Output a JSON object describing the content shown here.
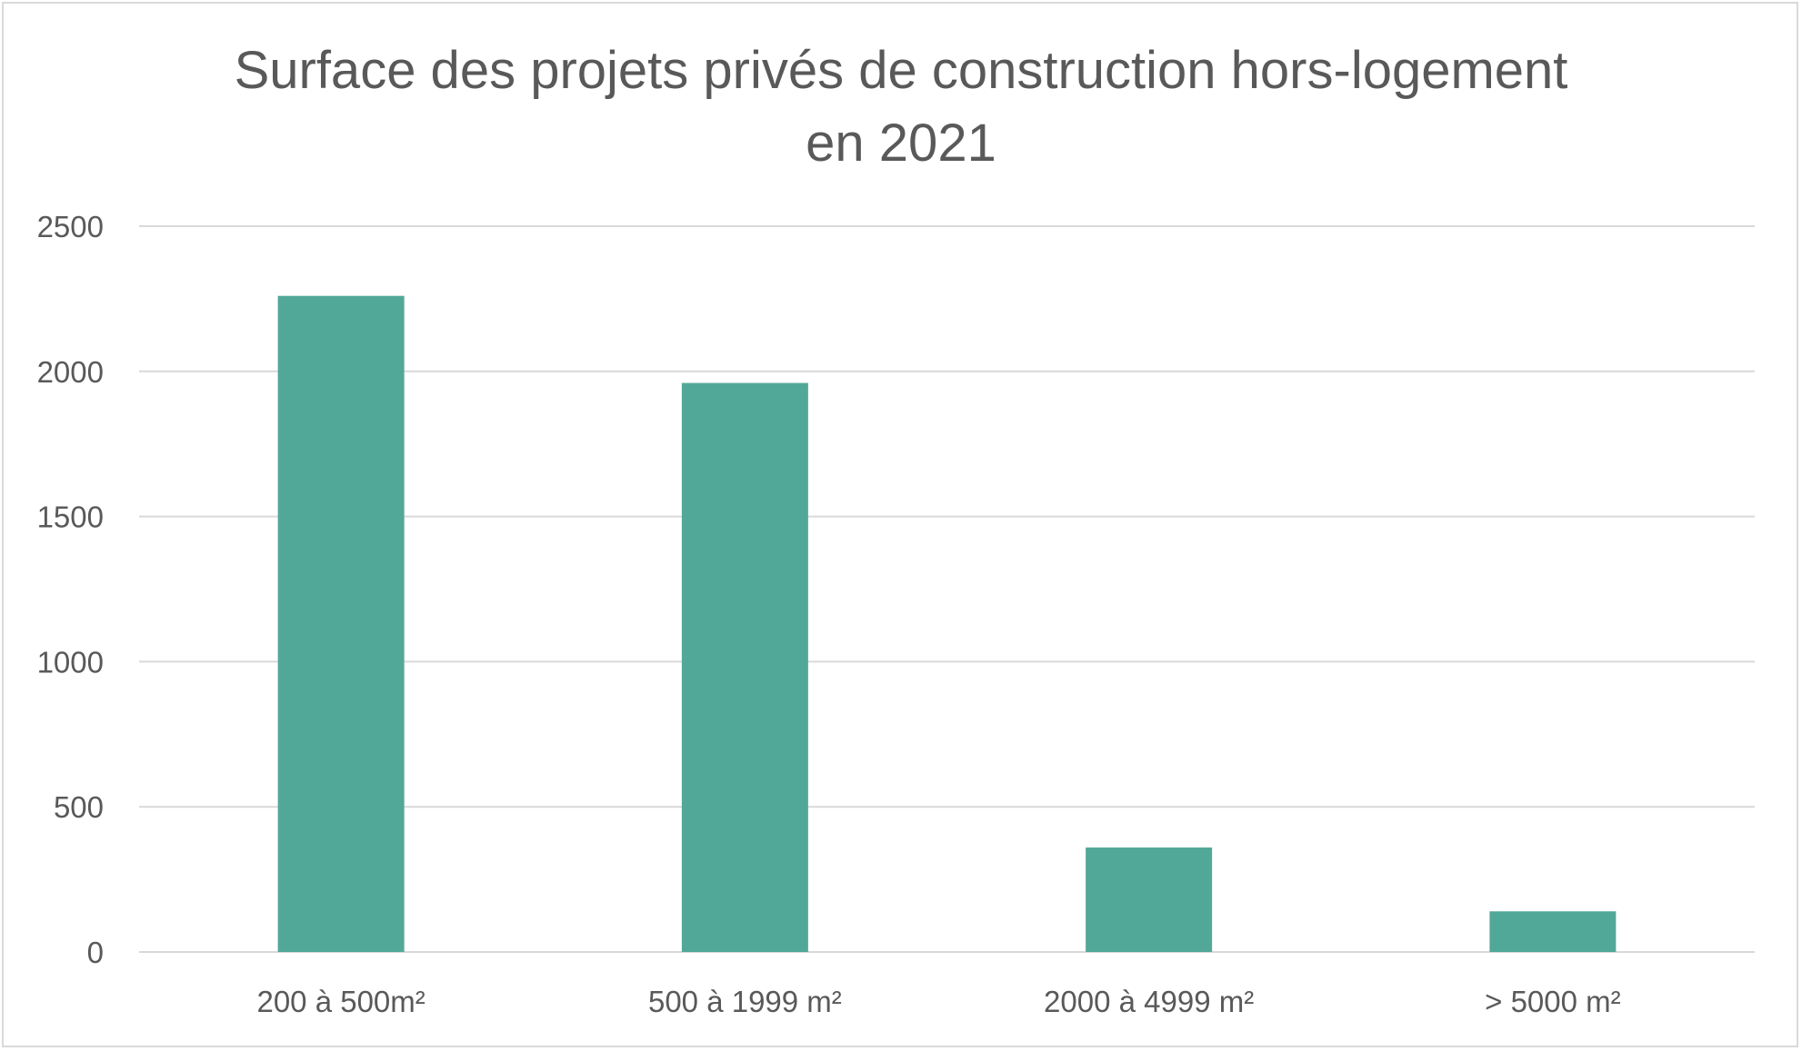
{
  "chart_data": {
    "type": "bar",
    "title": "Surface des projets privés de construction hors-logement",
    "subtitle": "en 2021",
    "xlabel": "",
    "ylabel": "",
    "categories": [
      "200 à 500m²",
      "500 à 1999 m²",
      "2000 à 4999 m²",
      "> 5000 m²"
    ],
    "values": [
      2260,
      1960,
      360,
      140
    ],
    "ylim": [
      0,
      2500
    ],
    "yticks": [
      "0",
      "500",
      "1000",
      "1500",
      "2000",
      "2500"
    ],
    "grid": true,
    "legend": "none",
    "bar_color": "#52a898",
    "grid_color": "#d9d9d9",
    "text_color": "#595959"
  }
}
